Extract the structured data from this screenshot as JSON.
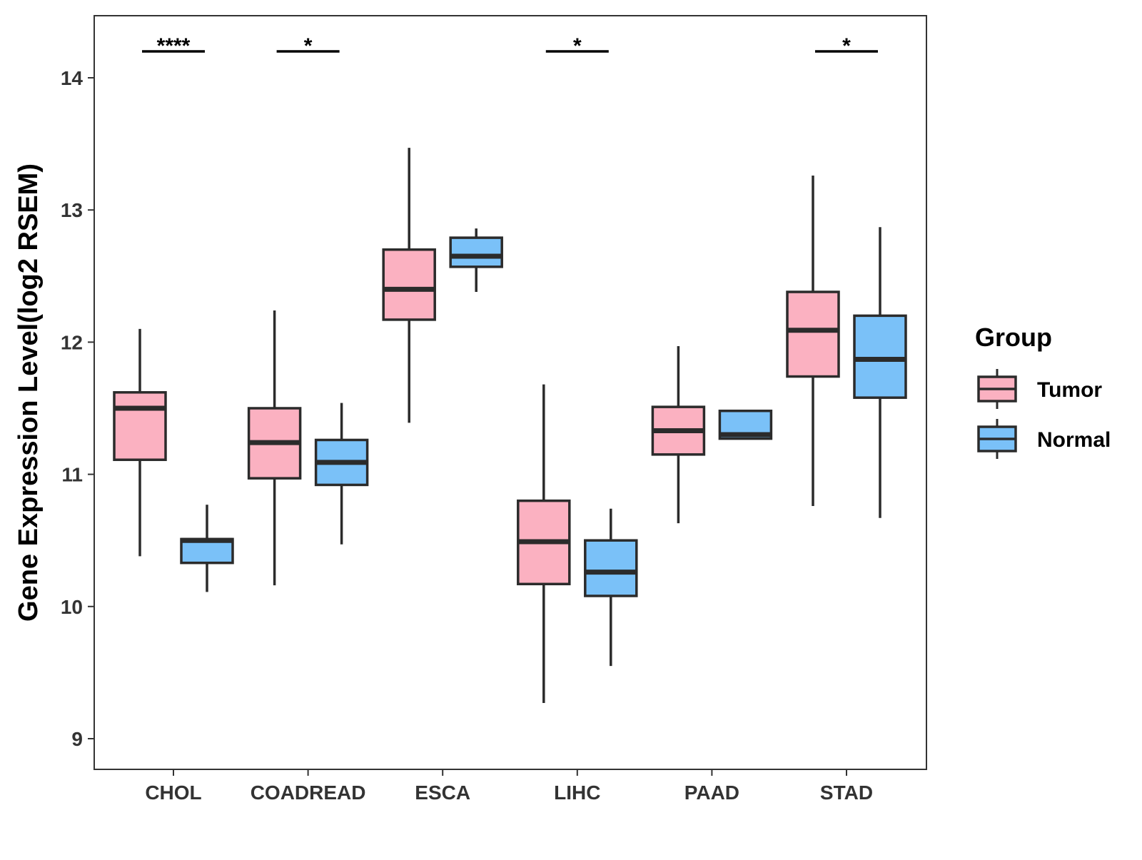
{
  "chart_data": {
    "type": "boxplot",
    "title": "",
    "xlabel": "",
    "ylabel": "Gene Expression Level(log2 RSEM)",
    "ylim": [
      8.8,
      14.5
    ],
    "yticks": [
      9,
      10,
      11,
      12,
      13,
      14
    ],
    "categories": [
      "CHOL",
      "COADREAD",
      "ESCA",
      "LIHC",
      "PAAD",
      "STAD"
    ],
    "legend": {
      "title": "Group",
      "position": "right",
      "entries": [
        {
          "label": "Tumor",
          "color": "#fbb1c1"
        },
        {
          "label": "Normal",
          "color": "#7ac1f8"
        }
      ]
    },
    "series": [
      {
        "name": "Tumor",
        "color": "#fbb1c1",
        "boxes": [
          {
            "category": "CHOL",
            "min": 10.38,
            "q1": 11.11,
            "median": 11.5,
            "q3": 11.62,
            "max": 12.1
          },
          {
            "category": "COADREAD",
            "min": 10.16,
            "q1": 10.97,
            "median": 11.24,
            "q3": 11.5,
            "max": 12.24
          },
          {
            "category": "ESCA",
            "min": 11.39,
            "q1": 12.17,
            "median": 12.4,
            "q3": 12.7,
            "max": 13.47
          },
          {
            "category": "LIHC",
            "min": 9.27,
            "q1": 10.17,
            "median": 10.49,
            "q3": 10.8,
            "max": 11.68
          },
          {
            "category": "PAAD",
            "min": 10.63,
            "q1": 11.15,
            "median": 11.33,
            "q3": 11.51,
            "max": 11.97
          },
          {
            "category": "STAD",
            "min": 10.76,
            "q1": 11.74,
            "median": 12.09,
            "q3": 12.38,
            "max": 13.26
          }
        ]
      },
      {
        "name": "Normal",
        "color": "#7ac1f8",
        "boxes": [
          {
            "category": "CHOL",
            "min": 10.11,
            "q1": 10.33,
            "median": 10.5,
            "q3": 10.51,
            "max": 10.77
          },
          {
            "category": "COADREAD",
            "min": 10.47,
            "q1": 10.92,
            "median": 11.09,
            "q3": 11.26,
            "max": 11.54
          },
          {
            "category": "ESCA",
            "min": 12.38,
            "q1": 12.57,
            "median": 12.65,
            "q3": 12.79,
            "max": 12.86
          },
          {
            "category": "LIHC",
            "min": 9.55,
            "q1": 10.08,
            "median": 10.26,
            "q3": 10.5,
            "max": 10.74
          },
          {
            "category": "PAAD",
            "min": 11.27,
            "q1": 11.27,
            "median": 11.3,
            "q3": 11.48,
            "max": 11.48
          },
          {
            "category": "STAD",
            "min": 10.67,
            "q1": 11.58,
            "median": 11.87,
            "q3": 12.2,
            "max": 12.87
          }
        ]
      }
    ],
    "significance": [
      {
        "category": "CHOL",
        "label": "****"
      },
      {
        "category": "COADREAD",
        "label": "*"
      },
      {
        "category": "LIHC",
        "label": "*"
      },
      {
        "category": "STAD",
        "label": "*"
      }
    ],
    "significance_level": 14.2,
    "grid": false
  }
}
